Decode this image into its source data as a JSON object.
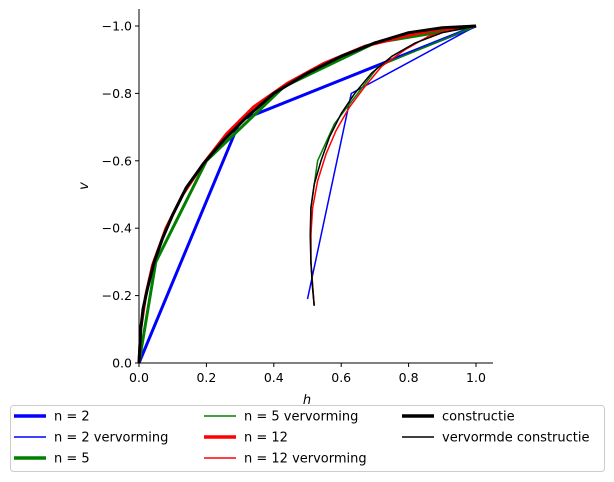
{
  "chart_data": {
    "type": "line",
    "title": "",
    "xlabel": "h",
    "ylabel": "v",
    "xlim": [
      0,
      1.05
    ],
    "ylim": [
      0,
      -1.05
    ],
    "y_axis_inverted": true,
    "xticks": [
      "0.0",
      "0.2",
      "0.4",
      "0.6",
      "0.8",
      "1.0"
    ],
    "yticks": [
      "0.0",
      "−0.2",
      "−0.4",
      "−0.6",
      "−0.8",
      "−1.0"
    ],
    "grid": false,
    "legend_placement": "below plot, 3 columns",
    "series": [
      {
        "name": "n = 2",
        "color": "#0000ff",
        "style": "thick",
        "x": [
          0.0,
          0.3,
          1.0
        ],
        "y": [
          0.0,
          -0.72,
          -1.0
        ]
      },
      {
        "name": "n = 2 vervorming",
        "color": "#0000ff",
        "style": "thin",
        "x": [
          0.5,
          0.63,
          1.0
        ],
        "y": [
          -0.19,
          -0.8,
          -1.0
        ]
      },
      {
        "name": "n = 5",
        "color": "#008000",
        "style": "thick",
        "x": [
          0.0,
          0.05,
          0.2,
          0.43,
          0.7,
          1.0
        ],
        "y": [
          0.0,
          -0.3,
          -0.6,
          -0.82,
          -0.95,
          -1.0
        ]
      },
      {
        "name": "n = 5 vervorming",
        "color": "#008000",
        "style": "thin",
        "x": [
          0.52,
          0.51,
          0.51,
          0.53,
          0.58,
          0.71,
          1.0
        ],
        "y": [
          -0.17,
          -0.3,
          -0.46,
          -0.6,
          -0.71,
          -0.88,
          -1.0
        ]
      },
      {
        "name": "n = 12",
        "color": "#ff0000",
        "style": "thick",
        "x": [
          0.0,
          0.005,
          0.02,
          0.04,
          0.08,
          0.13,
          0.19,
          0.26,
          0.34,
          0.44,
          0.55,
          0.67,
          0.79,
          0.89,
          1.0
        ],
        "y": [
          0.0,
          -0.1,
          -0.2,
          -0.29,
          -0.4,
          -0.5,
          -0.59,
          -0.68,
          -0.76,
          -0.83,
          -0.89,
          -0.94,
          -0.97,
          -0.99,
          -1.0
        ]
      },
      {
        "name": "n = 12 vervorming",
        "color": "#ff0000",
        "style": "thin",
        "x": [
          0.52,
          0.515,
          0.51,
          0.51,
          0.515,
          0.53,
          0.555,
          0.585,
          0.625,
          0.67,
          0.72,
          0.79,
          0.86,
          0.93,
          1.0
        ],
        "y": [
          -0.17,
          -0.23,
          -0.3,
          -0.38,
          -0.46,
          -0.54,
          -0.62,
          -0.69,
          -0.76,
          -0.82,
          -0.88,
          -0.93,
          -0.97,
          -0.99,
          -1.0
        ]
      },
      {
        "name": "constructie",
        "color": "#000000",
        "style": "thick",
        "x": [
          0.0,
          0.005,
          0.012,
          0.025,
          0.045,
          0.07,
          0.1,
          0.14,
          0.19,
          0.25,
          0.32,
          0.4,
          0.5,
          0.6,
          0.7,
          0.8,
          0.9,
          1.0
        ],
        "y": [
          0.0,
          -0.1,
          -0.16,
          -0.22,
          -0.3,
          -0.37,
          -0.44,
          -0.52,
          -0.59,
          -0.66,
          -0.73,
          -0.8,
          -0.86,
          -0.91,
          -0.95,
          -0.98,
          -0.995,
          -1.0
        ]
      },
      {
        "name": "vervormde constructie",
        "color": "#000000",
        "style": "thin",
        "x": [
          0.52,
          0.515,
          0.51,
          0.508,
          0.51,
          0.52,
          0.54,
          0.565,
          0.6,
          0.64,
          0.69,
          0.75,
          0.82,
          0.9,
          1.0
        ],
        "y": [
          -0.17,
          -0.22,
          -0.3,
          -0.38,
          -0.46,
          -0.53,
          -0.6,
          -0.67,
          -0.74,
          -0.8,
          -0.86,
          -0.91,
          -0.95,
          -0.98,
          -1.0
        ]
      }
    ]
  }
}
